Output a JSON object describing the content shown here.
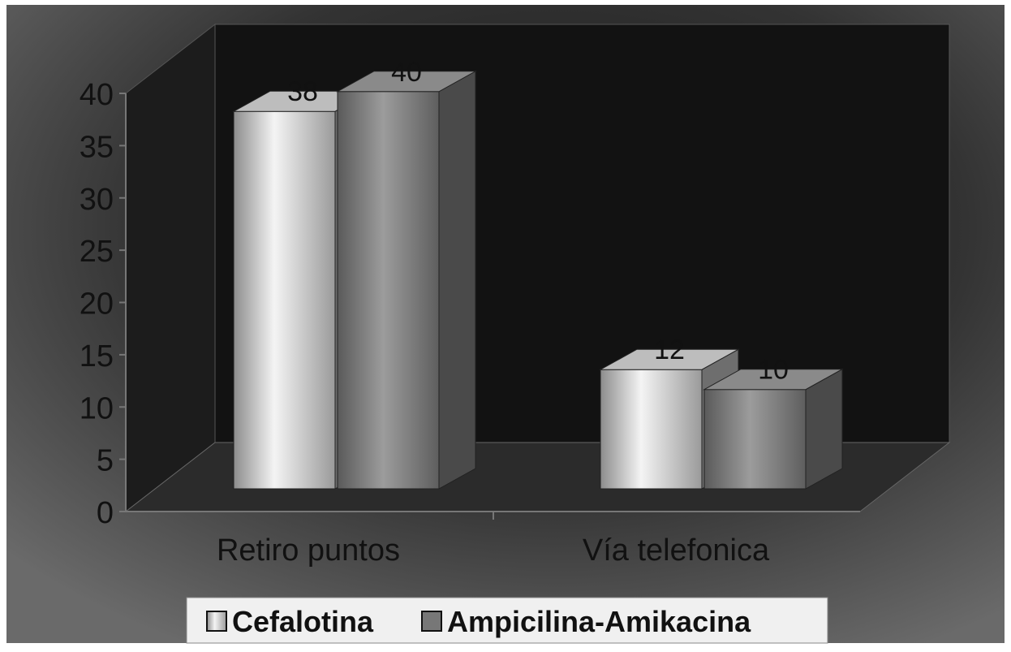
{
  "chart_data": {
    "type": "bar",
    "subtype": "3d-clustered-column",
    "title": "",
    "xlabel": "",
    "ylabel": "",
    "categories": [
      "Retiro puntos",
      "Vía telefonica"
    ],
    "series": [
      {
        "name": "Cefalotina",
        "values": [
          38,
          12
        ]
      },
      {
        "name": "Ampicilina-Amikacina",
        "values": [
          40,
          10
        ]
      }
    ],
    "ylim": [
      0,
      40
    ],
    "yticks": [
      "0",
      "5",
      "10",
      "15",
      "20",
      "25",
      "30",
      "35",
      "40"
    ],
    "data_labels": [
      [
        "38",
        "40"
      ],
      [
        "12",
        "10"
      ]
    ],
    "legend": {
      "position": "bottom",
      "entries": [
        "Cefalotina",
        "Ampicilina-Amikacina"
      ]
    },
    "grid": false,
    "colors": {
      "background": "#3f3f3f",
      "plot_back": "#141414",
      "floor": "#2a2a2a",
      "series1": "#d8d8d8",
      "series2": "#7a7a7a",
      "axis_text": "#111111",
      "legend_box": "#f0f0f0"
    }
  }
}
